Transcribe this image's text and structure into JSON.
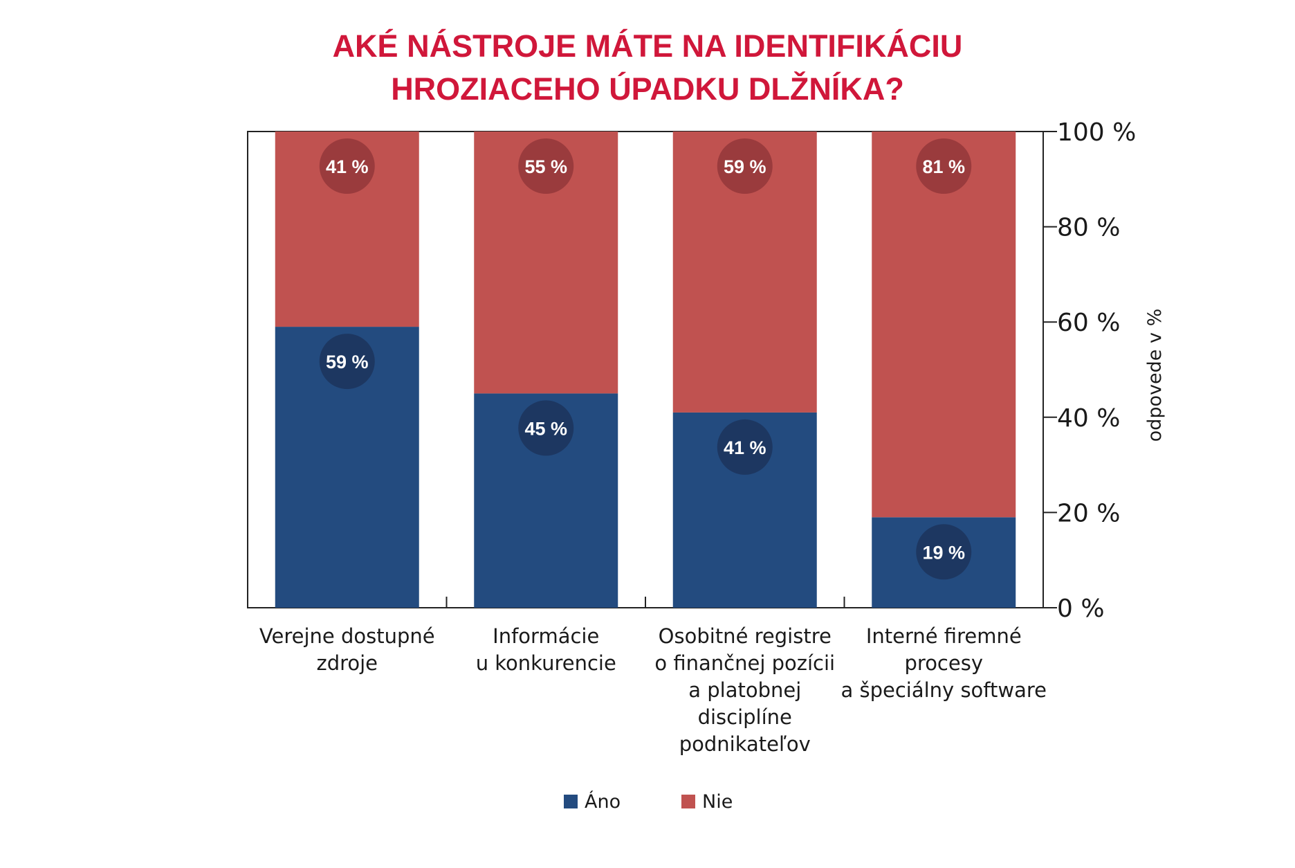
{
  "chart_data": {
    "type": "bar",
    "stacked": true,
    "title_lines": [
      "AKÉ NÁSTROJE MÁTE NA IDENTIFIKÁCIU",
      "HROZIACEHO ÚPADKU DLŽNÍKA?"
    ],
    "ylabel": "odpovede v %",
    "ylim": [
      0,
      100
    ],
    "yticks": [
      0,
      20,
      40,
      60,
      80,
      100
    ],
    "ytick_labels": [
      "0 %",
      "20 %",
      "40 %",
      "60 %",
      "80 %",
      "100 %"
    ],
    "categories": [
      [
        "Verejne dostupné",
        "zdroje"
      ],
      [
        "Informácie",
        "u konkurencie"
      ],
      [
        "Osobitné registre",
        "o finančnej pozícii",
        "a platobnej",
        "disciplíne",
        "podnikateľov"
      ],
      [
        "Interné firemné",
        "procesy",
        "a špeciálny software"
      ]
    ],
    "series": [
      {
        "name": "Áno",
        "values": [
          59,
          45,
          41,
          19
        ],
        "labels": [
          "59 %",
          "45 %",
          "41 %",
          "19 %"
        ],
        "color": "#234b7f",
        "badge_color": "#1d3761"
      },
      {
        "name": "Nie",
        "values": [
          41,
          55,
          59,
          81
        ],
        "labels": [
          "41 %",
          "55 %",
          "59 %",
          "81 %"
        ],
        "color": "#c05250",
        "badge_color": "#9a3b3d"
      }
    ],
    "legend_position": "bottom",
    "grid": false,
    "title_color": "#d0173a"
  }
}
